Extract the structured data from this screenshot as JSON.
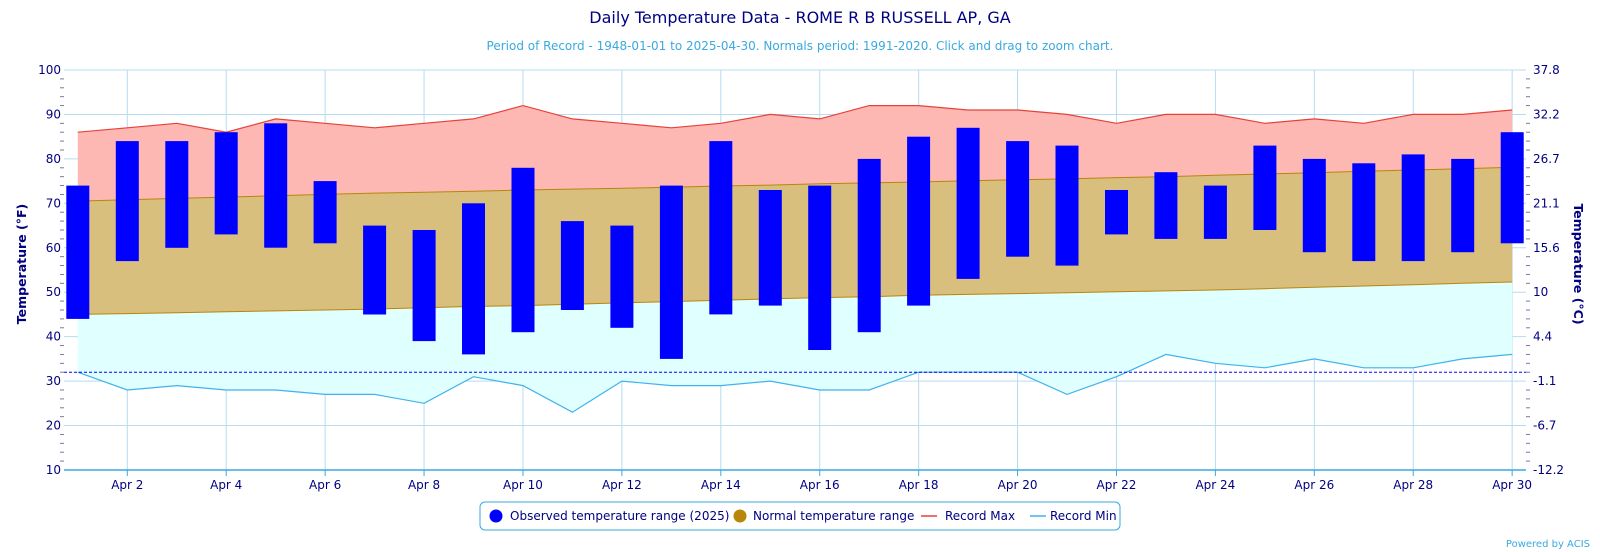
{
  "chart_data": {
    "type": "bar",
    "title": "Daily Temperature Data - ROME R B RUSSELL AP, GA",
    "subtitle": "Period of Record - 1948-01-01 to 2025-04-30. Normals period: 1991-2020. Click and drag to zoom chart.",
    "ylabel": "Temperature (°F)",
    "ylabel_right": "Temperature (°C)",
    "ylim": [
      10,
      100
    ],
    "yticks": [
      10,
      20,
      30,
      40,
      50,
      60,
      70,
      80,
      90,
      100
    ],
    "yticks_right": [
      "-12.2",
      "-6.7",
      "-1.1",
      "4.4",
      "10",
      "15.6",
      "21.1",
      "26.7",
      "32.2",
      "37.8"
    ],
    "freezing_line": 32,
    "x": [
      1,
      2,
      3,
      4,
      5,
      6,
      7,
      8,
      9,
      10,
      11,
      12,
      13,
      14,
      15,
      16,
      17,
      18,
      19,
      20,
      21,
      22,
      23,
      24,
      25,
      26,
      27,
      28,
      29,
      30
    ],
    "xtick_labels": [
      "Apr 2",
      "Apr 4",
      "Apr 6",
      "Apr 8",
      "Apr 10",
      "Apr 12",
      "Apr 14",
      "Apr 16",
      "Apr 18",
      "Apr 20",
      "Apr 22",
      "Apr 24",
      "Apr 26",
      "Apr 28",
      "Apr 30"
    ],
    "xtick_days": [
      2,
      4,
      6,
      8,
      10,
      12,
      14,
      16,
      18,
      20,
      22,
      24,
      26,
      28,
      30
    ],
    "colors": {
      "observed": "#0000ff",
      "normal_fill": "#d9bf7d",
      "normal_line": "#b8860b",
      "record_max_fill": "#fdb8b4",
      "record_max_line": "#e8413a",
      "record_min_fill": "#e0ffff",
      "record_min_line": "#3fb2ee",
      "grid": "#b6dcef",
      "freezing": "#0000ff"
    },
    "series": [
      {
        "name": "Observed temperature range (2025)",
        "type": "columnrange",
        "low": [
          44,
          57,
          60,
          63,
          60,
          61,
          45,
          39,
          36,
          41,
          46,
          42,
          35,
          45,
          47,
          37,
          41,
          47,
          53,
          58,
          56,
          63,
          62,
          62,
          64,
          59,
          57,
          57,
          59,
          61
        ],
        "high": [
          74,
          84,
          84,
          86,
          88,
          75,
          65,
          64,
          70,
          78,
          66,
          65,
          74,
          84,
          73,
          74,
          80,
          85,
          87,
          84,
          83,
          73,
          77,
          74,
          83,
          80,
          79,
          81,
          80,
          86
        ]
      },
      {
        "name": "Normal temperature range",
        "type": "arearange",
        "low": [
          45,
          45.2,
          45.4,
          45.6,
          45.8,
          46,
          46.2,
          46.5,
          46.8,
          47,
          47.3,
          47.6,
          47.9,
          48.2,
          48.5,
          48.8,
          49,
          49.3,
          49.5,
          49.7,
          49.9,
          50.1,
          50.3,
          50.5,
          50.8,
          51.1,
          51.4,
          51.7,
          52,
          52.3
        ],
        "high": [
          70.5,
          70.8,
          71.1,
          71.4,
          71.7,
          72,
          72.3,
          72.5,
          72.7,
          73,
          73.2,
          73.4,
          73.6,
          73.9,
          74.1,
          74.4,
          74.6,
          74.8,
          75.1,
          75.3,
          75.5,
          75.8,
          76,
          76.3,
          76.6,
          76.9,
          77.2,
          77.5,
          77.8,
          78.1
        ]
      },
      {
        "name": "Record Max",
        "type": "line",
        "values": [
          86,
          87,
          88,
          86,
          89,
          88,
          87,
          88,
          89,
          92,
          89,
          88,
          87,
          88,
          90,
          89,
          92,
          92,
          91,
          91,
          90,
          88,
          90,
          90,
          88,
          89,
          88,
          90,
          90,
          91
        ]
      },
      {
        "name": "Record Min",
        "type": "line",
        "values": [
          32,
          28,
          29,
          28,
          28,
          27,
          27,
          25,
          31,
          29,
          23,
          30,
          29,
          29,
          30,
          28,
          28,
          32,
          32,
          32,
          27,
          31,
          36,
          34,
          33,
          35,
          33,
          33,
          35,
          36
        ]
      }
    ],
    "legend_placement": "bottom-center",
    "credits": "Powered by ACIS"
  }
}
